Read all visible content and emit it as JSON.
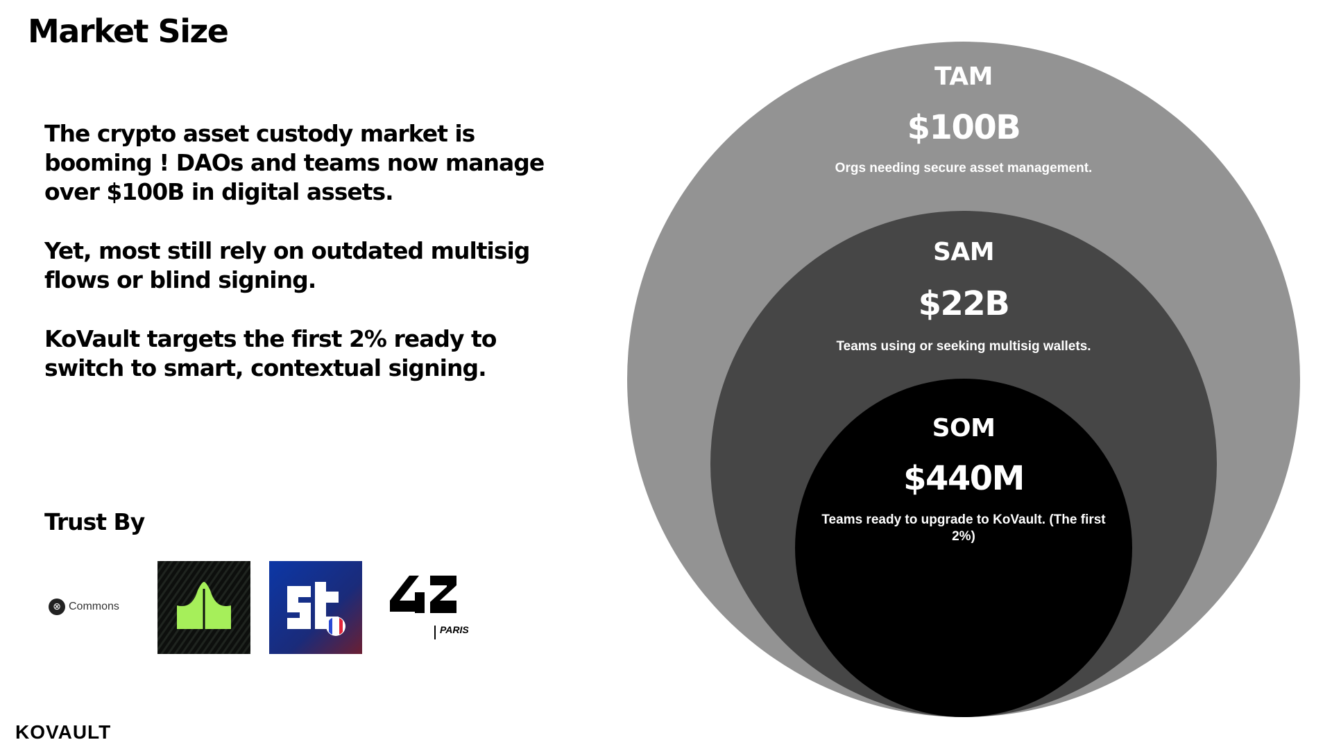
{
  "page": {
    "title": "Market Size",
    "paragraphs": [
      "The crypto asset custody market is booming ! DAOs and teams now manage over $100B in digital assets.",
      "Yet, most still rely on outdated multisig flows or blind signing.",
      "KoVault targets the first 2% ready to switch to smart, contextual signing."
    ],
    "trust_heading": "Trust By",
    "logos": [
      {
        "name": "Commons",
        "icon": "commons-logo"
      },
      {
        "name": "",
        "icon": "green-leaf-logo"
      },
      {
        "name": "",
        "icon": "station-f-logo"
      },
      {
        "name": "PARIS",
        "icon": "42-paris-logo"
      }
    ],
    "brand": "KOVAULT"
  },
  "market": {
    "tam": {
      "name": "TAM",
      "value": "$100B",
      "description": "Orgs needing secure asset management.",
      "color": "#939393"
    },
    "sam": {
      "name": "SAM",
      "value": "$22B",
      "description": "Teams using or seeking multisig wallets.",
      "color": "#464646"
    },
    "som": {
      "name": "SOM",
      "value": "$440M",
      "description": "Teams ready to upgrade to KoVault. (The first 2%)",
      "color": "#000000"
    }
  }
}
